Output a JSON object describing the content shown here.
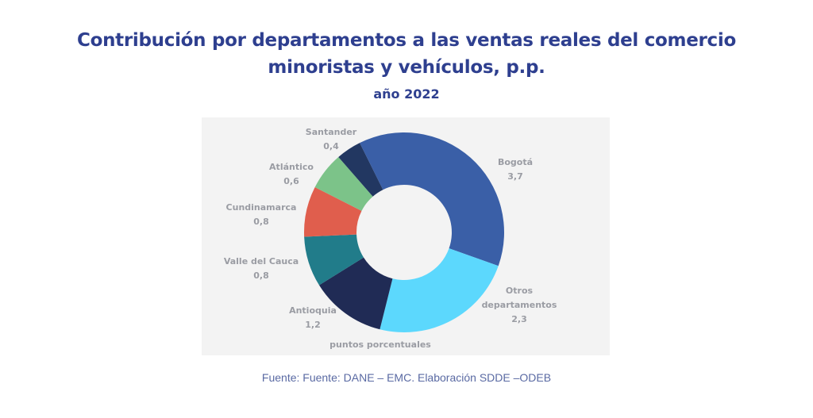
{
  "title": {
    "line1": "Contribución por departamentos a las ventas reales del comercio",
    "line2": "minoristas y vehículos, p.p.",
    "subtitle": "año 2022"
  },
  "source": "Fuente: Fuente: DANE – EMC. Elaboración SDDE –ODEB",
  "chart_data": {
    "type": "pie",
    "variant": "donut",
    "title": "Contribución por departamentos a las ventas reales del comercio minoristas y vehículos, p.p. — año 2022",
    "unit_label": "puntos porcentuales",
    "start": "top",
    "direction": "clockwise",
    "slices": [
      {
        "name": "Bogotá",
        "label_lines": [
          "Bogotá",
          "3,7"
        ],
        "value": 3.7,
        "color": "#3a5fa7"
      },
      {
        "name": "Otros departamentos",
        "label_lines": [
          "Otros",
          "departamentos",
          "2,3"
        ],
        "value": 2.3,
        "color": "#5cd8fd"
      },
      {
        "name": "Antioquia",
        "label_lines": [
          "Antioquia",
          "1,2"
        ],
        "value": 1.2,
        "color": "#202b55"
      },
      {
        "name": "Valle del Cauca",
        "label_lines": [
          "Valle del Cauca",
          "0,8"
        ],
        "value": 0.8,
        "color": "#217c8a"
      },
      {
        "name": "Cundinamarca",
        "label_lines": [
          "Cundinamarca",
          "0,8"
        ],
        "value": 0.8,
        "color": "#e05e4d"
      },
      {
        "name": "Atlántico",
        "label_lines": [
          "Atlántico",
          "0,6"
        ],
        "value": 0.6,
        "color": "#7cc389"
      },
      {
        "name": "Santander",
        "label_lines": [
          "Santander",
          "0,4"
        ],
        "value": 0.4,
        "color": "#223761"
      }
    ]
  }
}
